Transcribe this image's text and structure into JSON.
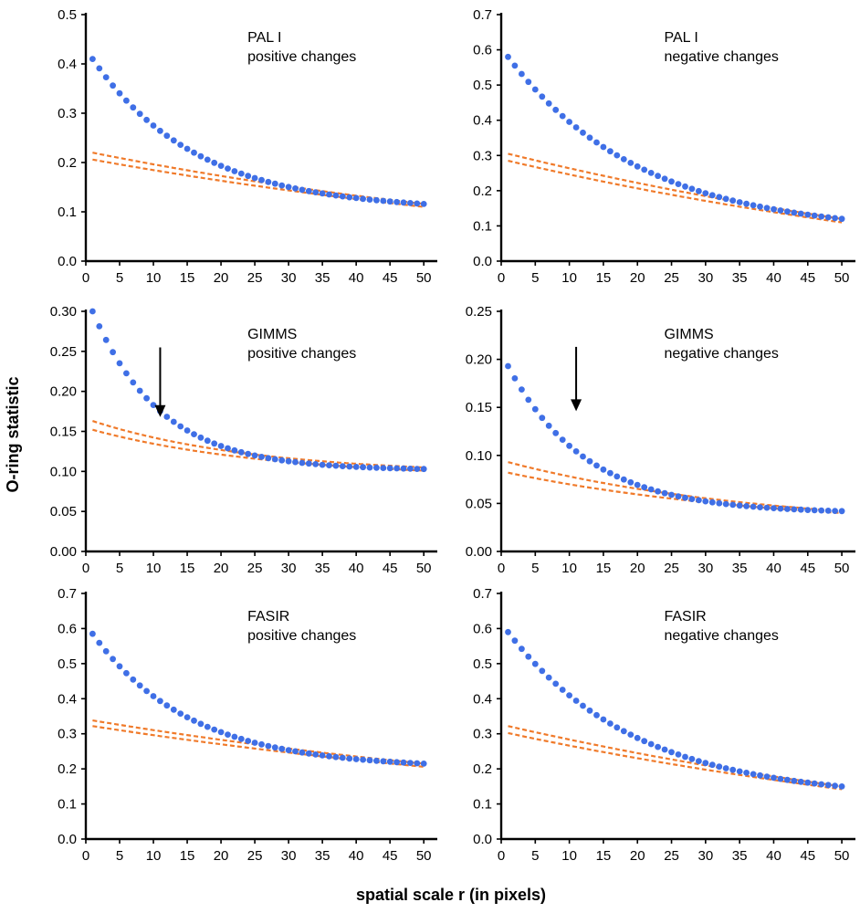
{
  "figure": {
    "ylabel": "O-ring statistic",
    "xlabel": "spatial scale r (in pixels)"
  },
  "colors": {
    "observed": "#3f6fe6",
    "envelope": "#f07a2a",
    "axis": "#000000"
  },
  "chart_data": [
    {
      "type": "scatter",
      "dataset": "PAL I",
      "change": "positive changes",
      "xlim": [
        0,
        52
      ],
      "ylim": [
        0,
        0.5
      ],
      "yticks": [
        "0.0",
        "0.1",
        "0.2",
        "0.3",
        "0.4",
        "0.5"
      ],
      "xticks": [
        0,
        5,
        10,
        15,
        20,
        25,
        30,
        35,
        40,
        45,
        50
      ],
      "observed": {
        "x_start": 1,
        "x_end": 50,
        "y_start": 0.41,
        "y_mid": 0.168,
        "y_end": 0.116
      },
      "envelope_upper": {
        "y_start": 0.22,
        "y_mid": 0.162,
        "y_end": 0.116
      },
      "envelope_lower": {
        "y_start": 0.206,
        "y_mid": 0.155,
        "y_end": 0.11
      },
      "arrow_x": null,
      "arrow_y": null
    },
    {
      "type": "scatter",
      "dataset": "PAL I",
      "change": "negative changes",
      "xlim": [
        0,
        52
      ],
      "ylim": [
        0,
        0.7
      ],
      "yticks": [
        "0.0",
        "0.1",
        "0.2",
        "0.3",
        "0.4",
        "0.5",
        "0.6",
        "0.7"
      ],
      "xticks": [
        0,
        5,
        10,
        15,
        20,
        25,
        30,
        35,
        40,
        45,
        50
      ],
      "observed": {
        "x_start": 1,
        "x_end": 50,
        "y_start": 0.58,
        "y_mid": 0.227,
        "y_end": 0.12
      },
      "envelope_upper": {
        "y_start": 0.305,
        "y_mid": 0.215,
        "y_end": 0.12
      },
      "envelope_lower": {
        "y_start": 0.285,
        "y_mid": 0.2,
        "y_end": 0.11
      },
      "arrow_x": null,
      "arrow_y": null
    },
    {
      "type": "scatter",
      "dataset": "GIMMS",
      "change": "positive changes",
      "xlim": [
        0,
        52
      ],
      "ylim": [
        0,
        0.3
      ],
      "yticks": [
        "0.00",
        "0.05",
        "0.10",
        "0.15",
        "0.20",
        "0.25",
        "0.30"
      ],
      "xticks": [
        0,
        5,
        10,
        15,
        20,
        25,
        30,
        35,
        40,
        45,
        50
      ],
      "observed": {
        "x_start": 1,
        "x_end": 50,
        "y_start": 0.3,
        "y_mid": 0.12,
        "y_end": 0.103
      },
      "envelope_upper": {
        "y_start": 0.163,
        "y_mid": 0.121,
        "y_end": 0.105
      },
      "envelope_lower": {
        "y_start": 0.152,
        "y_mid": 0.116,
        "y_end": 0.101
      },
      "arrow_x": 11,
      "arrow_y": [
        0.255,
        0.168
      ]
    },
    {
      "type": "scatter",
      "dataset": "GIMMS",
      "change": "negative changes",
      "xlim": [
        0,
        52
      ],
      "ylim": [
        0,
        0.25
      ],
      "yticks": [
        "0.00",
        "0.05",
        "0.10",
        "0.15",
        "0.20",
        "0.25"
      ],
      "xticks": [
        0,
        5,
        10,
        15,
        20,
        25,
        30,
        35,
        40,
        45,
        50
      ],
      "observed": {
        "x_start": 1,
        "x_end": 50,
        "y_start": 0.193,
        "y_mid": 0.059,
        "y_end": 0.042
      },
      "envelope_upper": {
        "y_start": 0.093,
        "y_mid": 0.06,
        "y_end": 0.042
      },
      "envelope_lower": {
        "y_start": 0.082,
        "y_mid": 0.055,
        "y_end": 0.04
      },
      "arrow_x": 11,
      "arrow_y": [
        0.213,
        0.146
      ]
    },
    {
      "type": "scatter",
      "dataset": "FASIR",
      "change": "positive changes",
      "xlim": [
        0,
        52
      ],
      "ylim": [
        0,
        0.7
      ],
      "yticks": [
        "0.0",
        "0.1",
        "0.2",
        "0.3",
        "0.4",
        "0.5",
        "0.6",
        "0.7"
      ],
      "xticks": [
        0,
        5,
        10,
        15,
        20,
        25,
        30,
        35,
        40,
        45,
        50
      ],
      "observed": {
        "x_start": 1,
        "x_end": 50,
        "y_start": 0.585,
        "y_mid": 0.275,
        "y_end": 0.215
      },
      "envelope_upper": {
        "y_start": 0.338,
        "y_mid": 0.27,
        "y_end": 0.215
      },
      "envelope_lower": {
        "y_start": 0.322,
        "y_mid": 0.258,
        "y_end": 0.206
      },
      "arrow_x": null,
      "arrow_y": null
    },
    {
      "type": "scatter",
      "dataset": "FASIR",
      "change": "negative changes",
      "xlim": [
        0,
        52
      ],
      "ylim": [
        0,
        0.7
      ],
      "yticks": [
        "0.0",
        "0.1",
        "0.2",
        "0.3",
        "0.4",
        "0.5",
        "0.6",
        "0.7"
      ],
      "xticks": [
        0,
        5,
        10,
        15,
        20,
        25,
        30,
        35,
        40,
        45,
        50
      ],
      "observed": {
        "x_start": 1,
        "x_end": 50,
        "y_start": 0.59,
        "y_mid": 0.248,
        "y_end": 0.15
      },
      "envelope_upper": {
        "y_start": 0.322,
        "y_mid": 0.245,
        "y_end": 0.15
      },
      "envelope_lower": {
        "y_start": 0.302,
        "y_mid": 0.228,
        "y_end": 0.142
      },
      "arrow_x": null,
      "arrow_y": null
    }
  ]
}
